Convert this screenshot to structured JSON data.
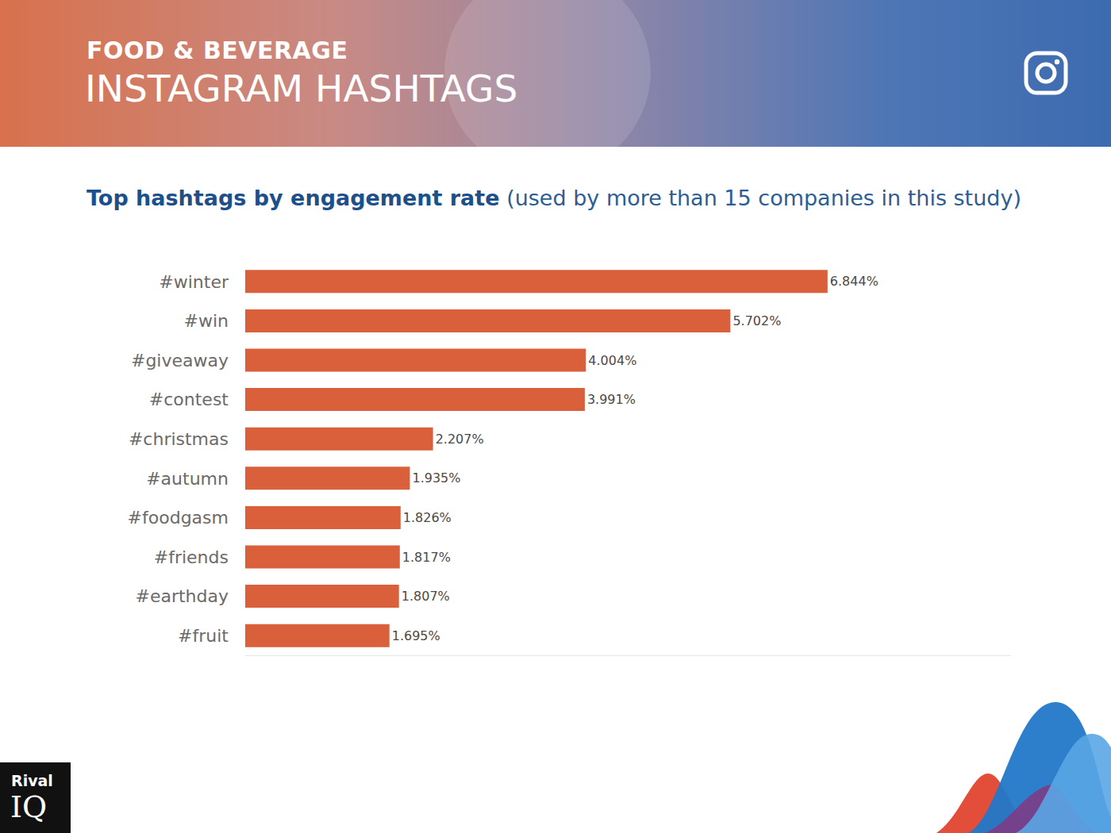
{
  "header": {
    "category": "FOOD & BEVERAGE",
    "title": "INSTAGRAM HASHTAGS"
  },
  "logo": {
    "lines": [
      "Rival",
      "IQ"
    ]
  },
  "chart_data": {
    "type": "bar",
    "title": "Top hashtags by engagement rate",
    "subtitle": "(used by more than 15 companies in this study)",
    "orientation": "horizontal",
    "categories": [
      "#winter",
      "#win",
      "#giveaway",
      "#contest",
      "#christmas",
      "#autumn",
      "#foodgasm",
      "#friends",
      "#earthday",
      "#fruit"
    ],
    "values": [
      6.844,
      5.702,
      4.004,
      3.991,
      2.207,
      1.935,
      1.826,
      1.817,
      1.807,
      1.695
    ],
    "value_labels": [
      "6.844%",
      "5.702%",
      "4.004%",
      "3.991%",
      "2.207%",
      "1.935%",
      "1.826%",
      "1.817%",
      "1.807%",
      "1.695%"
    ],
    "color": "#d9603b",
    "xlim": [
      0,
      9
    ],
    "xticks": [],
    "grid": false,
    "data_labels": true,
    "tick_labels": "y"
  }
}
